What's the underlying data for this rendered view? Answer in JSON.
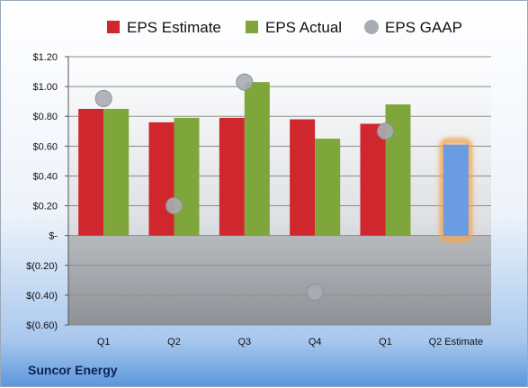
{
  "company": "Suncor Energy",
  "colors": {
    "estimate": "#d0262d",
    "actual": "#7fa63a",
    "gaap": "#a9adb3",
    "forecast": "#6b9be0",
    "forecast_glow": "#f2a650"
  },
  "chart_data": {
    "type": "bar",
    "categories": [
      "Q1",
      "Q2",
      "Q3",
      "Q4",
      "Q1",
      "Q2 Estimate"
    ],
    "series": [
      {
        "name": "EPS Estimate",
        "values": [
          0.85,
          0.76,
          0.79,
          0.78,
          0.75,
          0.61
        ]
      },
      {
        "name": "EPS Actual",
        "values": [
          0.85,
          0.79,
          1.03,
          0.65,
          0.88,
          null
        ]
      },
      {
        "name": "EPS GAAP",
        "values": [
          0.92,
          0.2,
          1.03,
          -0.38,
          0.7,
          null
        ]
      }
    ],
    "legend_position": "top",
    "ylim": [
      -0.6,
      1.2
    ],
    "yticks": [
      1.2,
      1.0,
      0.8,
      0.6,
      0.4,
      0.2,
      0,
      -0.2,
      -0.4,
      -0.6
    ],
    "ytick_labels": [
      "$1.20",
      "$1.00",
      "$0.80",
      "$0.60",
      "$0.40",
      "$0.20",
      "$-",
      "$(0.20)",
      "$(0.40)",
      "$(0.60)"
    ],
    "grid": true
  }
}
